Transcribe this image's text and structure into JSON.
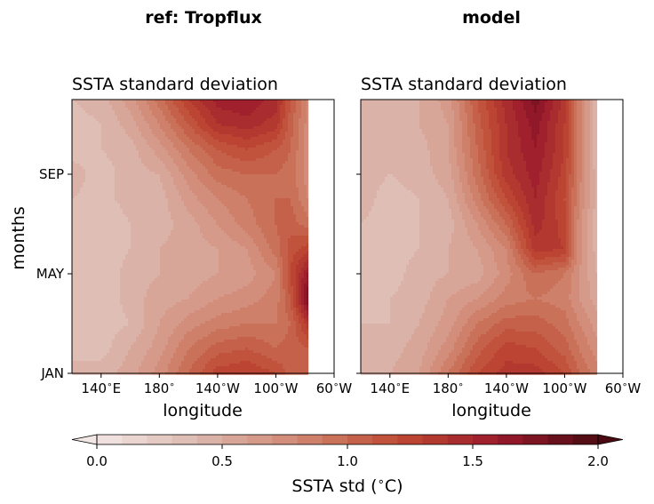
{
  "chart_data": [
    {
      "type": "heatmap",
      "suptitle": "ref: Tropflux",
      "title": "SSTA standard deviation",
      "xlabel": "longitude",
      "ylabel": "months",
      "x_ticks": [
        {
          "value": 140,
          "label": "140$^\\circ$E"
        },
        {
          "value": 180,
          "label": "180$^\\circ$"
        },
        {
          "value": 220,
          "label": "140$^\\circ$W"
        },
        {
          "value": 260,
          "label": "100$^\\circ$W"
        },
        {
          "value": 300,
          "label": "60$^\\circ$W"
        }
      ],
      "xlim": [
        120,
        300
      ],
      "y_ticks": [
        {
          "value": 1,
          "label": "JAN"
        },
        {
          "value": 5,
          "label": "MAY"
        },
        {
          "value": 9,
          "label": "SEP"
        }
      ],
      "ylim": [
        1,
        12
      ],
      "data_extent_east": 282,
      "x": [
        120,
        140,
        160,
        180,
        200,
        220,
        240,
        260,
        270,
        282
      ],
      "y": [
        1,
        2,
        3,
        4,
        5,
        6,
        7,
        8,
        9,
        10,
        11,
        12
      ],
      "z": [
        [
          0.45,
          0.45,
          0.55,
          0.75,
          1.0,
          1.25,
          1.3,
          1.2,
          1.05,
          1.0
        ],
        [
          0.35,
          0.35,
          0.5,
          0.65,
          0.9,
          1.05,
          1.1,
          1.0,
          1.05,
          1.1
        ],
        [
          0.3,
          0.35,
          0.4,
          0.6,
          0.75,
          0.85,
          0.9,
          0.9,
          1.0,
          1.35
        ],
        [
          0.35,
          0.3,
          0.45,
          0.55,
          0.6,
          0.7,
          0.75,
          0.85,
          1.1,
          1.8
        ],
        [
          0.3,
          0.3,
          0.45,
          0.5,
          0.55,
          0.6,
          0.65,
          0.8,
          1.2,
          1.6
        ],
        [
          0.4,
          0.35,
          0.4,
          0.5,
          0.55,
          0.6,
          0.7,
          0.95,
          1.15,
          1.25
        ],
        [
          0.35,
          0.3,
          0.4,
          0.45,
          0.55,
          0.7,
          0.85,
          1.0,
          1.05,
          0.95
        ],
        [
          0.4,
          0.35,
          0.45,
          0.45,
          0.65,
          0.8,
          0.9,
          1.0,
          1.0,
          0.8
        ],
        [
          0.45,
          0.35,
          0.45,
          0.5,
          0.75,
          0.95,
          1.0,
          1.0,
          0.95,
          0.75
        ],
        [
          0.35,
          0.4,
          0.45,
          0.65,
          0.9,
          1.1,
          1.2,
          1.1,
          1.0,
          0.75
        ],
        [
          0.35,
          0.4,
          0.55,
          0.8,
          1.1,
          1.4,
          1.45,
          1.35,
          1.05,
          0.75
        ],
        [
          0.4,
          0.45,
          0.65,
          0.95,
          1.3,
          1.55,
          1.6,
          1.45,
          1.1,
          0.8
        ]
      ]
    },
    {
      "type": "heatmap",
      "suptitle": "model",
      "title": "SSTA standard deviation",
      "xlabel": "longitude",
      "x_ticks": [
        {
          "value": 140,
          "label": "140$^\\circ$E"
        },
        {
          "value": 180,
          "label": "180$^\\circ$"
        },
        {
          "value": 220,
          "label": "140$^\\circ$W"
        },
        {
          "value": 260,
          "label": "100$^\\circ$W"
        },
        {
          "value": 300,
          "label": "60$^\\circ$W"
        }
      ],
      "xlim": [
        120,
        300
      ],
      "ylim": [
        1,
        12
      ],
      "data_extent_east": 282,
      "x": [
        120,
        140,
        160,
        180,
        200,
        220,
        240,
        260,
        270,
        282
      ],
      "y": [
        1,
        2,
        3,
        4,
        5,
        6,
        7,
        8,
        9,
        10,
        11,
        12
      ],
      "z": [
        [
          0.5,
          0.5,
          0.6,
          0.9,
          1.2,
          1.35,
          1.35,
          1.2,
          1.0,
          0.85
        ],
        [
          0.45,
          0.45,
          0.55,
          0.75,
          1.05,
          1.25,
          1.2,
          1.05,
          0.9,
          0.75
        ],
        [
          0.4,
          0.4,
          0.5,
          0.65,
          0.9,
          1.05,
          1.05,
          0.95,
          0.8,
          0.65
        ],
        [
          0.35,
          0.4,
          0.45,
          0.6,
          0.7,
          0.85,
          0.9,
          0.85,
          0.7,
          0.55
        ],
        [
          0.35,
          0.35,
          0.45,
          0.5,
          0.55,
          0.75,
          1.0,
          0.9,
          0.7,
          0.5
        ],
        [
          0.4,
          0.35,
          0.4,
          0.5,
          0.6,
          0.8,
          1.35,
          1.3,
          0.75,
          0.45
        ],
        [
          0.4,
          0.35,
          0.4,
          0.45,
          0.7,
          1.0,
          1.45,
          1.25,
          0.75,
          0.45
        ],
        [
          0.45,
          0.35,
          0.4,
          0.5,
          0.85,
          1.2,
          1.5,
          1.2,
          0.8,
          0.45
        ],
        [
          0.45,
          0.4,
          0.45,
          0.55,
          0.95,
          1.35,
          1.55,
          1.25,
          0.85,
          0.45
        ],
        [
          0.45,
          0.4,
          0.45,
          0.6,
          1.0,
          1.4,
          1.6,
          1.3,
          0.85,
          0.4
        ],
        [
          0.45,
          0.4,
          0.5,
          0.6,
          1.05,
          1.4,
          1.65,
          1.3,
          0.85,
          0.4
        ],
        [
          0.45,
          0.4,
          0.5,
          0.65,
          1.1,
          1.45,
          1.75,
          1.35,
          0.85,
          0.4
        ]
      ]
    }
  ],
  "colorbar": {
    "label": "SSTA std ($^\\circ$C)",
    "min": 0.0,
    "max": 2.0,
    "step": 0.1,
    "ticks": [
      {
        "value": 0.0,
        "label": "0.0"
      },
      {
        "value": 0.5,
        "label": "0.5"
      },
      {
        "value": 1.0,
        "label": "1.0"
      },
      {
        "value": 1.5,
        "label": "1.5"
      },
      {
        "value": 2.0,
        "label": "2.0"
      }
    ],
    "extend": "both",
    "color_stops": [
      "#f3e7e6",
      "#dcb8ae",
      "#d08872",
      "#bf4a33",
      "#9b1a2c",
      "#4a0a12"
    ]
  }
}
